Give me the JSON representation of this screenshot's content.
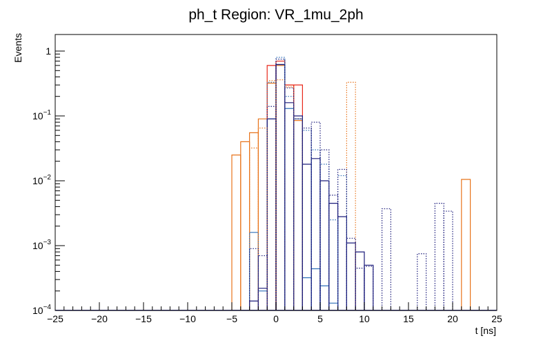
{
  "chart_data": {
    "type": "histogram",
    "title": "ph_t Region: VR_1mu_2ph",
    "xlabel": "t [ns]",
    "ylabel": "Events",
    "xlim": [
      -25,
      25
    ],
    "ylim": [
      0.0001,
      1.8
    ],
    "yscale": "log",
    "bin_width": 1.0,
    "x_ticks": [
      -25,
      -20,
      -15,
      -10,
      -5,
      0,
      5,
      10,
      15,
      20,
      25
    ],
    "x_tick_labels": [
      "−25",
      "−20",
      "−15",
      "−10",
      "−5",
      "0",
      "5",
      "10",
      "15",
      "20",
      "25"
    ],
    "y_ticks": [
      0.0001,
      0.001,
      0.01,
      0.1,
      1
    ],
    "y_tick_labels": [
      {
        "base": "10",
        "exp": "−4"
      },
      {
        "base": "10",
        "exp": "−3"
      },
      {
        "base": "10",
        "exp": "−2"
      },
      {
        "base": "10",
        "exp": "−1"
      },
      {
        "base": "1",
        "exp": ""
      }
    ],
    "series": [
      {
        "name": "orange-solid",
        "color": "#e8731a",
        "dash": "solid",
        "bins": [
          [
            -5,
            0.025
          ],
          [
            -4,
            0.04
          ],
          [
            -3,
            0.055
          ],
          [
            -2,
            0.09
          ],
          [
            -1,
            0.32
          ],
          [
            0,
            0.6
          ],
          [
            1,
            0.3
          ],
          [
            2,
            0.085
          ],
          [
            21,
            0.0105
          ]
        ]
      },
      {
        "name": "red-solid",
        "color": "#e8271a",
        "dash": "solid",
        "bins": [
          [
            -1,
            0.6
          ],
          [
            0,
            0.7
          ],
          [
            1,
            0.3
          ],
          [
            2,
            0.3
          ]
        ]
      },
      {
        "name": "blue-solid",
        "color": "#2d6fb8",
        "dash": "solid",
        "bins": [
          [
            -3,
            0.0016
          ],
          [
            -2,
            0.0002
          ],
          [
            -1,
            0.09
          ],
          [
            0,
            0.62
          ],
          [
            1,
            0.13
          ],
          [
            2,
            0.09
          ],
          [
            3,
            0.00032
          ],
          [
            4,
            0.00044
          ],
          [
            5,
            0.00024
          ],
          [
            6,
            0.00013
          ]
        ]
      },
      {
        "name": "navy-solid",
        "color": "#1a1a7a",
        "dash": "solid",
        "bins": [
          [
            -3,
            0.00014
          ],
          [
            -2,
            0.00022
          ],
          [
            -1,
            0.09
          ],
          [
            0,
            0.62
          ],
          [
            1,
            0.16
          ],
          [
            2,
            0.1
          ],
          [
            3,
            0.018
          ],
          [
            4,
            0.022
          ],
          [
            5,
            0.01
          ],
          [
            6,
            0.0045
          ],
          [
            7,
            0.0028
          ],
          [
            8,
            0.0011
          ],
          [
            9,
            0.0008
          ],
          [
            10,
            0.0005
          ]
        ]
      },
      {
        "name": "orange-dotted",
        "color": "#e8731a",
        "dash": "dotted",
        "bins": [
          [
            -3,
            0.032
          ],
          [
            -2,
            0.065
          ],
          [
            -1,
            0.35
          ],
          [
            0,
            0.36
          ],
          [
            1,
            0.28
          ],
          [
            2,
            0.09
          ],
          [
            8,
            0.33
          ]
        ]
      },
      {
        "name": "blue-dotted",
        "color": "#2d6fb8",
        "dash": "dotted",
        "bins": [
          [
            -1,
            0.33
          ],
          [
            0,
            0.8
          ],
          [
            1,
            0.2
          ],
          [
            3,
            0.06
          ],
          [
            4,
            0.03
          ],
          [
            5,
            0.018
          ],
          [
            6,
            0.0025
          ],
          [
            7,
            0.012
          ]
        ]
      },
      {
        "name": "navy-dotted",
        "color": "#1a1a7a",
        "dash": "dotted",
        "bins": [
          [
            -3,
            0.0009
          ],
          [
            -2,
            0.0007
          ],
          [
            -1,
            0.14
          ],
          [
            0,
            0.75
          ],
          [
            1,
            0.27
          ],
          [
            2,
            0.09
          ],
          [
            3,
            0.065
          ],
          [
            4,
            0.08
          ],
          [
            5,
            0.03
          ],
          [
            6,
            0.006
          ],
          [
            7,
            0.015
          ],
          [
            8,
            0.0013
          ],
          [
            9,
            0.00045
          ],
          [
            10,
            0.00048
          ],
          [
            12,
            0.0037
          ],
          [
            16,
            0.00075
          ],
          [
            18,
            0.0045
          ],
          [
            19,
            0.0034
          ]
        ]
      }
    ]
  }
}
